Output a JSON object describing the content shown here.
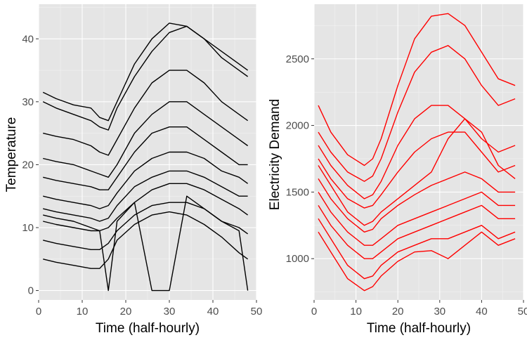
{
  "chart_data": [
    {
      "type": "line",
      "xlabel": "Time (half-hourly)",
      "ylabel": "Temperature",
      "xlim": [
        0,
        50
      ],
      "ylim": [
        -1.5,
        45.5
      ],
      "xticks": [
        "0",
        "10",
        "20",
        "30",
        "40",
        "50"
      ],
      "yticks": [
        "0",
        "10",
        "20",
        "30",
        "40"
      ],
      "color": "#000000",
      "x": [
        1,
        4,
        8,
        12,
        14,
        16,
        18,
        22,
        26,
        30,
        34,
        38,
        42,
        46,
        48
      ],
      "series": [
        {
          "values": [
            31.5,
            30.5,
            29.5,
            29,
            27.5,
            27,
            30,
            36,
            40,
            42.5,
            42,
            40,
            38,
            36,
            35
          ]
        },
        {
          "values": [
            30,
            29,
            28,
            27,
            26,
            25.5,
            29,
            34,
            38,
            41,
            42,
            40,
            37,
            35,
            34
          ]
        },
        {
          "values": [
            25,
            24.5,
            24,
            23,
            22,
            21.5,
            24,
            29,
            33,
            35,
            35,
            33,
            30,
            28,
            27
          ]
        },
        {
          "values": [
            21,
            20.5,
            20,
            19,
            18.5,
            18,
            20,
            25,
            28,
            30,
            30,
            28,
            26,
            24,
            23
          ]
        },
        {
          "values": [
            18,
            17.5,
            17,
            16.5,
            16,
            16,
            18,
            22,
            25,
            26,
            26,
            24,
            22,
            20,
            20
          ]
        },
        {
          "values": [
            15,
            14.5,
            14,
            13.5,
            13,
            13.5,
            15.5,
            19,
            21,
            22,
            22,
            21,
            19,
            18,
            17
          ]
        },
        {
          "values": [
            13,
            12.5,
            12,
            11.5,
            11,
            11.5,
            13.5,
            16.5,
            18,
            19,
            19,
            18,
            16.5,
            15,
            15
          ]
        },
        {
          "values": [
            11,
            10.5,
            10,
            9.5,
            9.5,
            10,
            11.5,
            14,
            16,
            17,
            17,
            16,
            14.5,
            13,
            12
          ]
        },
        {
          "values": [
            8,
            7.5,
            7,
            6.5,
            6.5,
            7.5,
            9.5,
            12,
            13.5,
            14,
            14,
            13,
            11,
            10,
            9
          ]
        },
        {
          "values": [
            5,
            4.5,
            4,
            3.5,
            3.5,
            5,
            8,
            10.5,
            12,
            12.5,
            12,
            10.5,
            8.5,
            6,
            5
          ]
        },
        {
          "values": [
            12,
            11.5,
            11,
            10,
            9.5,
            0,
            11,
            14,
            0,
            0,
            15,
            13,
            11,
            9.5,
            0
          ]
        }
      ]
    },
    {
      "type": "line",
      "xlabel": "Time (half-hourly)",
      "ylabel": "Electricity Demand",
      "xlim": [
        0,
        50
      ],
      "ylim": [
        690,
        2910
      ],
      "xticks": [
        "0",
        "10",
        "20",
        "30",
        "40",
        "50"
      ],
      "yticks": [
        "1000",
        "1500",
        "2000",
        "2500"
      ],
      "color": "#ff0000",
      "x": [
        1,
        4,
        8,
        12,
        14,
        16,
        20,
        24,
        28,
        32,
        36,
        40,
        44,
        48
      ],
      "series": [
        {
          "values": [
            2150,
            1950,
            1780,
            1700,
            1750,
            1900,
            2300,
            2650,
            2820,
            2840,
            2750,
            2550,
            2350,
            2300
          ]
        },
        {
          "values": [
            1950,
            1800,
            1650,
            1580,
            1620,
            1750,
            2100,
            2400,
            2550,
            2600,
            2500,
            2300,
            2150,
            2200
          ]
        },
        {
          "values": [
            1850,
            1700,
            1550,
            1450,
            1480,
            1580,
            1850,
            2050,
            2150,
            2150,
            2050,
            1900,
            1800,
            1850
          ]
        },
        {
          "values": [
            1750,
            1600,
            1450,
            1380,
            1400,
            1480,
            1650,
            1800,
            1900,
            1950,
            1950,
            1800,
            1650,
            1700
          ]
        },
        {
          "values": [
            1700,
            1550,
            1350,
            1250,
            1280,
            1350,
            1450,
            1550,
            1650,
            1900,
            2050,
            1950,
            1700,
            1600
          ]
        },
        {
          "values": [
            1600,
            1450,
            1300,
            1200,
            1220,
            1300,
            1400,
            1480,
            1550,
            1600,
            1650,
            1600,
            1500,
            1500
          ]
        },
        {
          "values": [
            1500,
            1350,
            1200,
            1100,
            1100,
            1150,
            1250,
            1300,
            1350,
            1400,
            1450,
            1500,
            1400,
            1400
          ]
        },
        {
          "values": [
            1400,
            1250,
            1100,
            1000,
            1000,
            1050,
            1150,
            1200,
            1250,
            1300,
            1350,
            1400,
            1300,
            1300
          ]
        },
        {
          "values": [
            1300,
            1150,
            950,
            850,
            870,
            950,
            1050,
            1100,
            1150,
            1150,
            1200,
            1250,
            1150,
            1200
          ]
        },
        {
          "values": [
            1200,
            1050,
            850,
            760,
            790,
            870,
            980,
            1050,
            1060,
            1000,
            1100,
            1200,
            1100,
            1150
          ]
        }
      ]
    }
  ]
}
